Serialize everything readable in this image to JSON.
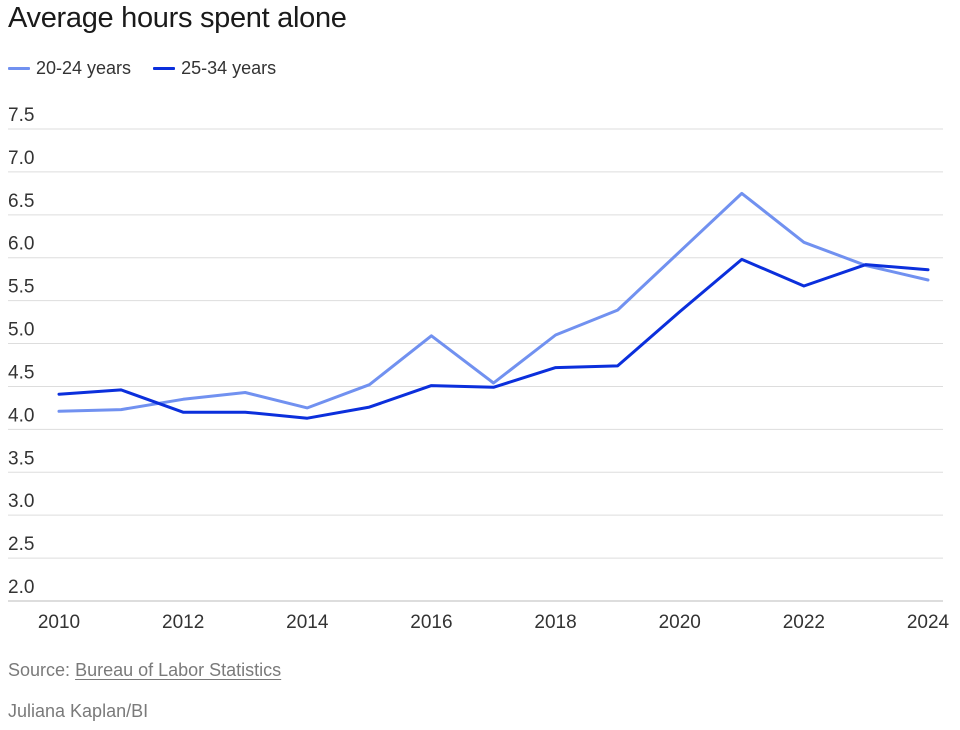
{
  "colors": {
    "grid": "#dddddd",
    "axis_text": "#333333",
    "footer_text": "#7a7a7a"
  },
  "chart_data": {
    "type": "line",
    "title": "Average hours spent alone",
    "x": [
      2010,
      2011,
      2012,
      2013,
      2014,
      2015,
      2016,
      2017,
      2018,
      2019,
      2020,
      2021,
      2022,
      2023,
      2024
    ],
    "x_ticks": [
      "2010",
      "2012",
      "2014",
      "2016",
      "2018",
      "2020",
      "2022",
      "2024"
    ],
    "y_ticks": [
      "2.0",
      "2.5",
      "3.0",
      "3.5",
      "4.0",
      "4.5",
      "5.0",
      "5.5",
      "6.0",
      "6.5",
      "7.0",
      "7.5"
    ],
    "ylim": [
      2.0,
      7.5
    ],
    "xlim": [
      2010,
      2024
    ],
    "grid": "horizontal",
    "legend_position": "top-left",
    "series": [
      {
        "name": "20-24 years",
        "color": "#7191f0",
        "values": [
          4.21,
          4.23,
          4.35,
          4.43,
          4.25,
          4.52,
          5.09,
          4.54,
          5.1,
          5.39,
          6.07,
          6.75,
          6.18,
          5.91,
          5.74
        ]
      },
      {
        "name": "25-34 years",
        "color": "#0b2fdc",
        "values": [
          4.41,
          4.46,
          4.2,
          4.2,
          4.13,
          4.26,
          4.51,
          4.49,
          4.72,
          4.74,
          5.37,
          5.98,
          5.67,
          5.92,
          5.86
        ]
      }
    ]
  },
  "footer": {
    "source_prefix": "Source:",
    "source_link": "Bureau of Labor Statistics",
    "credit": "Juliana Kaplan/BI"
  }
}
